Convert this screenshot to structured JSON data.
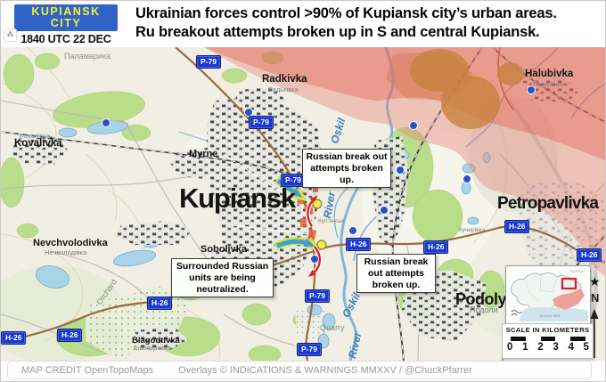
{
  "header": {
    "badge_line1": "KUPIANSK",
    "badge_line2": "CITY",
    "timestamp": "1840 UTC 22 DEC",
    "title_line1": "Ukrainian forces control >90% of Kupiansk city’s urban areas.",
    "title_line2": "Ru breakout attempts broken up in S and  central Kupiansk.",
    "corner_icon": "⁂"
  },
  "colors": {
    "badge_bg": "#2f63c5",
    "badge_text": "#f7ee38",
    "shield_bg": "#1838d2",
    "russian_overlay": "#e8857a",
    "ukrainian_arrow": "#3f9fd8",
    "russian_arrow": "#e01f1f"
  },
  "map": {
    "places": {
      "kupiansk": "Kupiansk",
      "petropavlivka": "Petropavlivka",
      "podoly": "Podoly",
      "kovalivka": "Kovalivka",
      "radkivka": "Radkivka",
      "halubivka": "Halubivka",
      "myrne": "Myrne",
      "sobolivka": "Sobolivka",
      "nevchvolodivka": "Nevchvolodivka",
      "blagodtivka": "Blagodtivka"
    },
    "sublabels": {
      "palamarika": "Паламарика",
      "radkivka_cyr": "Радьківка",
      "halubivka_cyr": "Голубівка",
      "nevchvolodivka_cyr": "Нечволодівка",
      "podoly_cyr": "Подоли",
      "blagodtivka_cyr": "Благодатівка",
      "kovalivka_cyr": "Ковалівка",
      "kucherivka": "Кучерівка",
      "kupiansk_cyr": "Куп’янськ"
    },
    "terrain": {
      "orchard": "Orchard",
      "quarry": "Quarry"
    },
    "river_labels": [
      "Oskil",
      "River",
      "Oskil",
      "River"
    ],
    "shields": [
      "P-79",
      "P-79",
      "P-79",
      "P-79",
      "P-79",
      "H-26",
      "H-26",
      "H-26",
      "H-26",
      "H-26",
      "H-26",
      "H-26"
    ],
    "annotations": [
      "Russian break out attempts broken up.",
      "Surrounded Russian units are being neutralized.",
      "Russian break out attempts broken up."
    ]
  },
  "inset": {
    "north_label": "N",
    "russia_label": "RUSSIA",
    "sea_label": "BLACK SEA"
  },
  "scale": {
    "label": "SCALE IN KILOMETERS",
    "ticks": [
      "0",
      "1",
      "2",
      "3",
      "4",
      "5"
    ]
  },
  "footer": {
    "credit": "MAP CREDIT OpenTopoMaps",
    "overlays": "Overlays  © INDICATIONS & WARNINGS MMXXV / @ChuckPfarrer"
  }
}
